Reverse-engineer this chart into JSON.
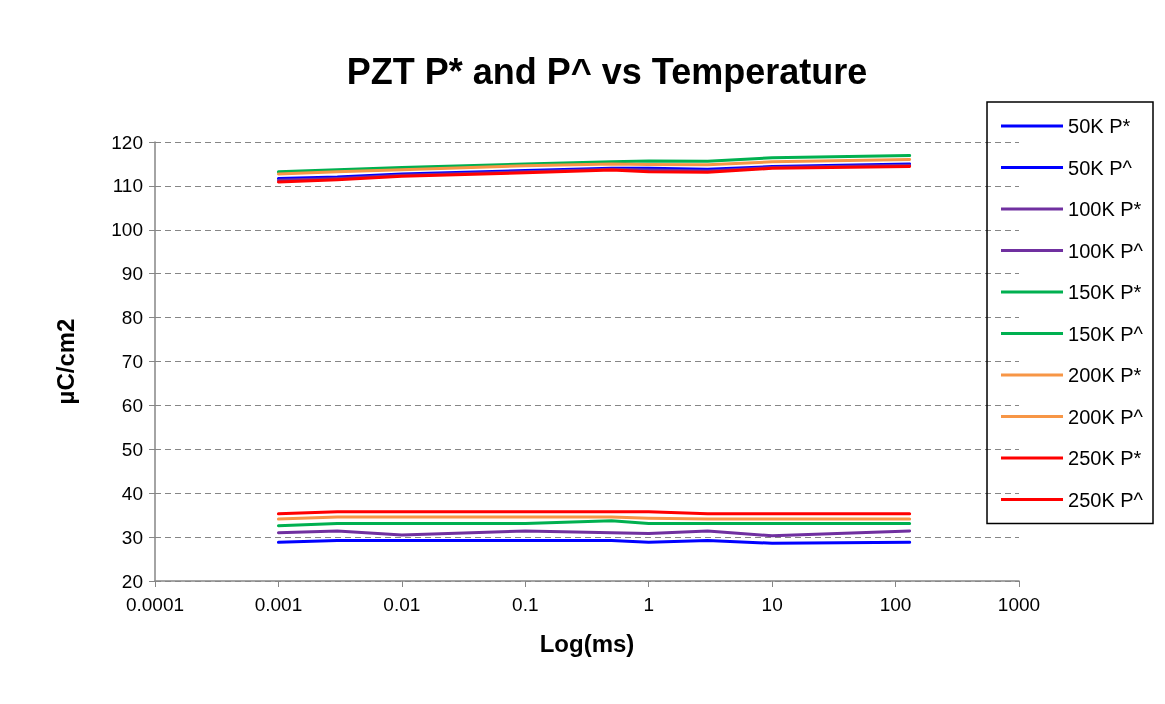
{
  "chart_data": {
    "type": "line",
    "title": "PZT P* and P^ vs Temperature",
    "xlabel": "Log(ms)",
    "ylabel": "µC/cm2",
    "log": "x",
    "xlim": [
      0.0001,
      1000
    ],
    "xticks": [
      0.0001,
      0.001,
      0.01,
      0.1,
      1,
      10,
      100,
      1000
    ],
    "ylim": [
      20,
      120
    ],
    "yticks": [
      20,
      30,
      40,
      50,
      60,
      70,
      80,
      90,
      100,
      110,
      120
    ],
    "grid": "y",
    "legend": "right",
    "marker": "none",
    "line_style": "solid",
    "x": [
      0.001,
      0.003,
      0.01,
      0.1,
      0.5,
      1,
      3,
      10,
      130
    ],
    "series": [
      {
        "name": "50K P*",
        "color": "#0000ff",
        "values": [
          111.7,
          112,
          112.7,
          113.5,
          114,
          114,
          113.8,
          114.4,
          115
        ]
      },
      {
        "name": "50K P^",
        "color": "#0000ff",
        "values": [
          28.8,
          29.2,
          29.2,
          29.2,
          29.2,
          28.8,
          29.2,
          28.6,
          28.8
        ]
      },
      {
        "name": "100K P*",
        "color": "#7030a0",
        "values": [
          111.3,
          111.7,
          112.4,
          113.2,
          113.8,
          113.6,
          113.4,
          114.2,
          114.7
        ]
      },
      {
        "name": "100K P^",
        "color": "#7030a0",
        "values": [
          31,
          31.4,
          30.5,
          31.4,
          31,
          30.8,
          31.4,
          30.3,
          31.4
        ]
      },
      {
        "name": "150K P*",
        "color": "#00b050",
        "values": [
          113.2,
          113.7,
          114.2,
          115,
          115.5,
          115.7,
          115.6,
          116.4,
          116.9
        ]
      },
      {
        "name": "150K P^",
        "color": "#00b050",
        "values": [
          32.6,
          33.1,
          33.1,
          33.1,
          33.7,
          33.1,
          33.1,
          33.1,
          33.1
        ]
      },
      {
        "name": "200K P*",
        "color": "#f79646",
        "values": [
          112.7,
          113.2,
          113.7,
          114.6,
          115,
          114.9,
          114.8,
          115.5,
          116
        ]
      },
      {
        "name": "200K P^",
        "color": "#f79646",
        "values": [
          34.1,
          34.6,
          34.6,
          34.6,
          34.6,
          34.3,
          34.1,
          34.1,
          34.1
        ]
      },
      {
        "name": "250K P*",
        "color": "#ff0000",
        "values": [
          110.9,
          111.4,
          112.2,
          113,
          113.6,
          113.2,
          113.1,
          114,
          114.4
        ]
      },
      {
        "name": "250K P^",
        "color": "#ff0000",
        "values": [
          35.3,
          35.8,
          35.8,
          35.8,
          35.8,
          35.8,
          35.3,
          35.3,
          35.3
        ]
      }
    ]
  }
}
